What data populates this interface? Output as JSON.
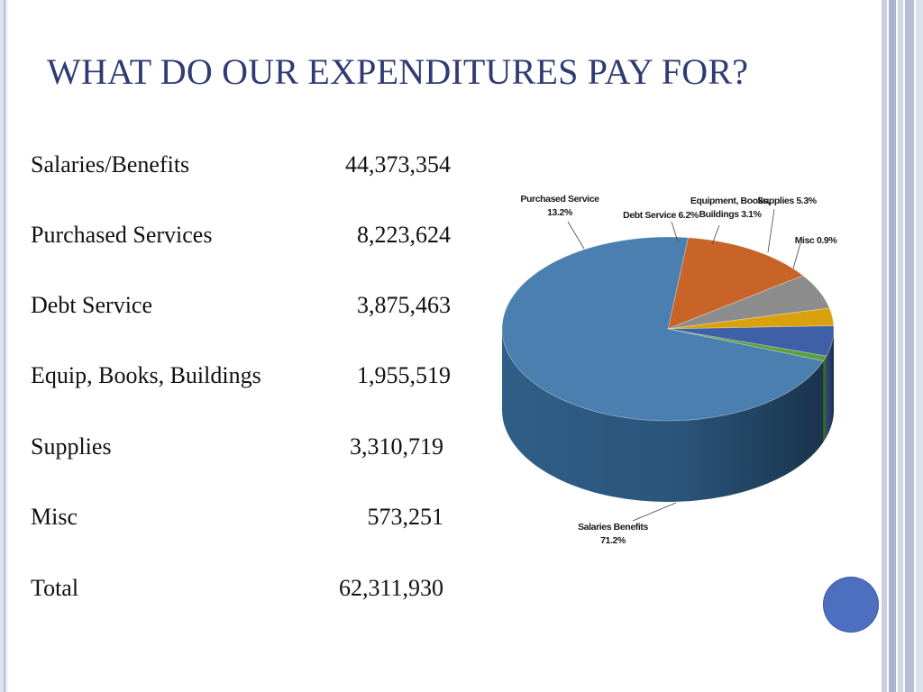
{
  "slide": {
    "title": "WHAT DO OUR EXPENDITURES PAY FOR?"
  },
  "table": {
    "rows": [
      {
        "label": "Salaries/Benefits",
        "value": "44,373,354"
      },
      {
        "label": "Purchased Services",
        "value": "8,223,624"
      },
      {
        "label": "Debt Service",
        "value": "3,875,463"
      },
      {
        "label": "Equip, Books, Buildings",
        "value": "1,955,519"
      },
      {
        "label": "Supplies",
        "value": "3,310,719"
      },
      {
        "label": "Misc",
        "value": "573,251"
      },
      {
        "label": "Total",
        "value": "62,311,930"
      }
    ]
  },
  "chart_data": {
    "type": "pie",
    "style": "3d",
    "slices": [
      {
        "name": "Salaries Benefits",
        "value": 71.2,
        "label_lines": [
          "Salaries Benefits",
          "71.2%"
        ],
        "color": "#4a7fb0",
        "side_color": "#2f5e88"
      },
      {
        "name": "Purchased Service",
        "value": 13.2,
        "label_lines": [
          "Purchased Service",
          "13.2%"
        ],
        "color": "#c86428",
        "side_color": "#8f4319"
      },
      {
        "name": "Debt Service",
        "value": 6.2,
        "label_lines": [
          "Debt Service 6.2%"
        ],
        "color": "#8c8c8c",
        "side_color": "#666666"
      },
      {
        "name": "Equipment, Books, Buildings",
        "value": 3.1,
        "label_lines": [
          "Equipment, Books,",
          "Buildings 3.1%"
        ],
        "color": "#d9a20c",
        "side_color": "#a77b06"
      },
      {
        "name": "Supplies",
        "value": 5.3,
        "label_lines": [
          "Supplies 5.3%"
        ],
        "color": "#3f5fa6",
        "side_color": "#2c4478"
      },
      {
        "name": "Misc",
        "value": 0.9,
        "label_lines": [
          "Misc 0.9%"
        ],
        "color": "#5aa03c",
        "side_color": "#3d7527"
      }
    ]
  }
}
